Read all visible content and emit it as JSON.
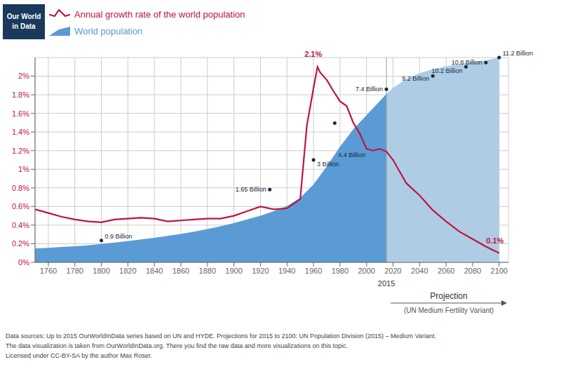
{
  "logo": "Our World\nin Data",
  "footer": [
    "Data sources: Up to 2015 OurWorldInData series based on UN and HYDE. Projections for 2015 to 2100: UN Population Division (2015) – Medium Variant.",
    "The data visualization is taken from OurWorldInData.org. There you find the raw data and more visualizations on this topic.",
    "Licensed under CC-BY-SA by the author Max Roser."
  ],
  "chart_data": {
    "type": "line",
    "legend": "top",
    "grid": true,
    "xlim": [
      1750,
      2107
    ],
    "ylim": [
      0,
      2.2
    ],
    "xticks": [
      1760,
      1780,
      1800,
      1820,
      1840,
      1860,
      1880,
      1900,
      1920,
      1940,
      1960,
      1980,
      2000,
      2020,
      2040,
      2060,
      2080,
      2100
    ],
    "yticks": [
      {
        "value": 0,
        "label": "0%"
      },
      {
        "value": 0.2,
        "label": "0.2%"
      },
      {
        "value": 0.4,
        "label": "0.4%"
      },
      {
        "value": 0.6,
        "label": "0.6%"
      },
      {
        "value": 0.8,
        "label": "0.8%"
      },
      {
        "value": 1.0,
        "label": "1%"
      },
      {
        "value": 1.2,
        "label": "1.2%"
      },
      {
        "value": 1.4,
        "label": "1.4%"
      },
      {
        "value": 1.6,
        "label": "1.6%"
      },
      {
        "value": 1.8,
        "label": "1.8%"
      },
      {
        "value": 2.0,
        "label": "2%"
      }
    ],
    "series": [
      {
        "name": "Annual growth rate of the world population",
        "type": "line",
        "color": "#c0143c",
        "x": [
          1750,
          1760,
          1770,
          1780,
          1790,
          1800,
          1810,
          1820,
          1830,
          1840,
          1850,
          1860,
          1870,
          1880,
          1890,
          1900,
          1910,
          1920,
          1930,
          1940,
          1950,
          1955,
          1960,
          1963,
          1965,
          1970,
          1975,
          1980,
          1985,
          1990,
          1995,
          2000,
          2005,
          2010,
          2015,
          2020,
          2030,
          2040,
          2050,
          2060,
          2070,
          2080,
          2090,
          2100
        ],
        "values": [
          0.57,
          0.53,
          0.49,
          0.46,
          0.44,
          0.43,
          0.46,
          0.47,
          0.48,
          0.47,
          0.44,
          0.45,
          0.46,
          0.47,
          0.47,
          0.5,
          0.55,
          0.6,
          0.57,
          0.58,
          0.68,
          1.47,
          1.87,
          2.1,
          2.04,
          1.96,
          1.84,
          1.73,
          1.68,
          1.5,
          1.38,
          1.22,
          1.2,
          1.22,
          1.19,
          1.1,
          0.85,
          0.72,
          0.56,
          0.44,
          0.33,
          0.25,
          0.17,
          0.1
        ]
      },
      {
        "name": "World population",
        "type": "area",
        "color": "#5b9bd5",
        "x": [
          1750,
          1760,
          1770,
          1780,
          1790,
          1800,
          1810,
          1820,
          1830,
          1840,
          1850,
          1860,
          1870,
          1880,
          1890,
          1900,
          1910,
          1920,
          1930,
          1940,
          1950,
          1960,
          1970,
          1980,
          1990,
          2000,
          2010,
          2015
        ],
        "values": [
          0.1496,
          0.1562,
          0.165,
          0.1738,
          0.1826,
          0.198,
          0.2134,
          0.2288,
          0.2464,
          0.264,
          0.2838,
          0.3058,
          0.33,
          0.3586,
          0.3872,
          0.4224,
          0.462,
          0.5016,
          0.55,
          0.605,
          0.693,
          0.836,
          1.0296,
          1.243,
          1.43,
          1.5796,
          1.7336,
          1.8084
        ]
      },
      {
        "type": "area",
        "color": "#aecde5",
        "x": [
          2015,
          2020,
          2030,
          2040,
          2050,
          2060,
          2070,
          2080,
          2090,
          2100
        ],
        "values": [
          1.8084,
          1.8744,
          1.969,
          2.0328,
          2.0746,
          2.1054,
          2.1296,
          2.1516,
          2.1714,
          2.2
        ]
      }
    ],
    "annotations": [
      {
        "text": "0.9 Billion",
        "x": 1800,
        "y": 0.2354,
        "color": "#1a2a3a",
        "marker": "circle"
      },
      {
        "text": "1.65 Billion",
        "x": 1927,
        "y": 0.781,
        "color": "#1a2a3a",
        "marker": "circle"
      },
      {
        "text": "3 Billion",
        "x": 1960,
        "y": 1.1,
        "color": "#1a2a3a",
        "marker": "circle"
      },
      {
        "text": "4.4 Billion",
        "x": 1976,
        "y": 1.496,
        "color": "#1a2a3a",
        "marker": "circle"
      },
      {
        "text": "7.4 Billion",
        "x": 2015,
        "y": 1.859,
        "color": "#1a2a3a",
        "marker": "circle"
      },
      {
        "text": "9.2 Billion",
        "x": 2050,
        "y": 2.002,
        "color": "#1a2a3a",
        "marker": "circle"
      },
      {
        "text": "10.2 Billion",
        "x": 2075,
        "y": 2.101,
        "color": "#1a2a3a",
        "marker": "circle"
      },
      {
        "text": "10.8 Billion",
        "x": 2090,
        "y": 2.145,
        "color": "#1a2a3a",
        "marker": "circle"
      },
      {
        "text": "11.2 Billion",
        "x": 2100,
        "y": 2.2,
        "color": "#1a2a3a",
        "marker": "circle"
      },
      {
        "text": "2.1%",
        "x": 1963,
        "y": 2.1,
        "color": "#c0143c"
      },
      {
        "text": "0.1%",
        "x": 2100,
        "y": 0.1,
        "color": "#c0143c"
      },
      {
        "text": "2015",
        "x": 2015
      },
      {
        "text": "Projection"
      },
      {
        "text": "(UN Medium Fertility Variant)"
      }
    ]
  }
}
